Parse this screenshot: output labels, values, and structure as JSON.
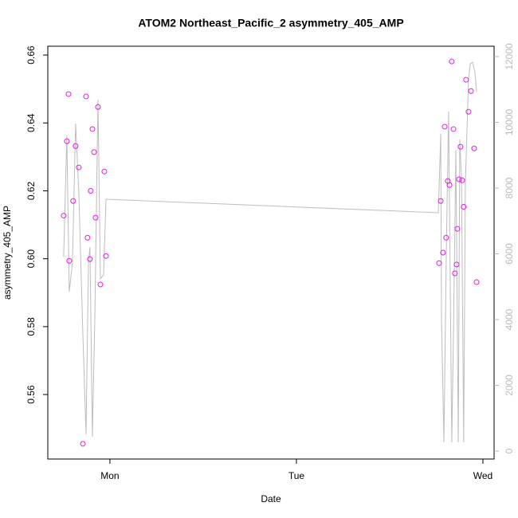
{
  "chart_data": {
    "type": "scatter",
    "title": "ATOM2 Northeast_Pacific_2 asymmetry_405_AMP",
    "xlabel": "Date",
    "ylabel": "asymmetry_405_AMP",
    "xlim": [
      0.667,
      3.06
    ],
    "xticks": [
      {
        "value": 1,
        "label": "Mon"
      },
      {
        "value": 2,
        "label": "Tue"
      },
      {
        "value": 3,
        "label": "Wed"
      }
    ],
    "ylim": [
      0.541,
      0.6626
    ],
    "yticks": [
      0.56,
      0.58,
      {
        "value": 0.6,
        "label": "0.60"
      },
      0.62,
      0.64,
      0.66
    ],
    "y2lim": [
      -242,
      12315
    ],
    "y2ticks": [
      0,
      2000,
      4000,
      6000,
      8000,
      10000,
      12000
    ],
    "y2color": "#bbbbbb",
    "series": [
      {
        "type": "line",
        "axis": "y2",
        "color": "#bdbdbd",
        "x": [
          0.752,
          0.769,
          0.782,
          0.799,
          0.816,
          0.833,
          0.855,
          0.872,
          0.885,
          0.893,
          0.906,
          0.919,
          0.936,
          0.949,
          0.966,
          0.979,
          2.761,
          2.774,
          2.778,
          2.791,
          2.803,
          2.816,
          2.833,
          2.842,
          2.855,
          2.868,
          2.876,
          2.885,
          2.897,
          2.906,
          2.923,
          2.932,
          2.944,
          2.957,
          2.966
        ],
        "values": [
          5915,
          9600,
          4850,
          5720,
          9960,
          7900,
          3540,
          510,
          5720,
          6200,
          436,
          4020,
          10690,
          5240,
          5360,
          7660,
          7250,
          9650,
          4020,
          267,
          5720,
          10330,
          267,
          3540,
          9160,
          267,
          9480,
          8340,
          267,
          8150,
          11300,
          11780,
          11830,
          11540,
          10930
        ]
      },
      {
        "type": "scatter",
        "color": "#e619e6",
        "x": [
          0.752,
          0.769,
          0.778,
          0.782,
          0.803,
          0.816,
          0.833,
          0.855,
          0.872,
          0.88,
          0.893,
          0.897,
          0.906,
          0.915,
          0.923,
          0.936,
          0.949,
          0.97,
          0.979,
          2.765,
          2.774,
          2.786,
          2.795,
          2.803,
          2.812,
          2.821,
          2.833,
          2.842,
          2.85,
          2.859,
          2.863,
          2.872,
          2.88,
          2.889,
          2.897,
          2.91,
          2.923,
          2.936,
          2.953,
          2.966
        ],
        "values": [
          0.6127,
          0.6346,
          0.6485,
          0.5994,
          0.617,
          0.6332,
          0.6269,
          0.5455,
          0.6478,
          0.6062,
          0.5999,
          0.62,
          0.6382,
          0.6314,
          0.6121,
          0.6447,
          0.5924,
          0.6257,
          0.6008,
          0.5987,
          0.617,
          0.6018,
          0.6389,
          0.6062,
          0.6229,
          0.6217,
          0.6581,
          0.6382,
          0.5957,
          0.5983,
          0.6088,
          0.6234,
          0.633,
          0.6231,
          0.6153,
          0.6527,
          0.6433,
          0.6494,
          0.6325,
          0.5931
        ]
      }
    ]
  }
}
